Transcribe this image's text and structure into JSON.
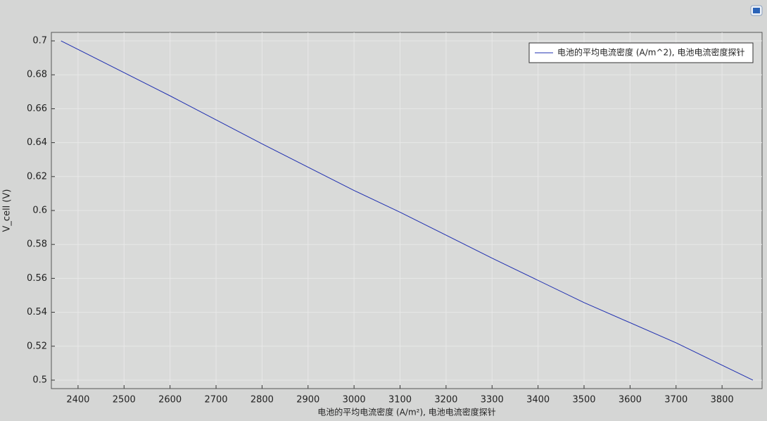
{
  "chart_data": {
    "type": "line",
    "xlabel": "电池的平均电流密度 (A/m²), 电池电流密度探针",
    "ylabel": "V_cell (V)",
    "x": [
      2363,
      2600,
      2800,
      3000,
      3100,
      3300,
      3500,
      3700,
      3867
    ],
    "series": [
      {
        "name": "电池的平均电流密度 (A/m^2), 电池电流密度探针",
        "color": "#1f2fb0",
        "values": [
          0.7,
          0.6676,
          0.6393,
          0.6118,
          0.599,
          0.5719,
          0.5457,
          0.522,
          0.5
        ]
      }
    ],
    "xlim": [
      2342,
      3887
    ],
    "ylim": [
      0.495,
      0.705
    ],
    "xticks": [
      2400,
      2500,
      2600,
      2700,
      2800,
      2900,
      3000,
      3100,
      3200,
      3300,
      3400,
      3500,
      3600,
      3700,
      3800
    ],
    "yticks": [
      0.5,
      0.52,
      0.54,
      0.56,
      0.58,
      0.6,
      0.62,
      0.64,
      0.66,
      0.68,
      0.7
    ],
    "grid": true,
    "legend": "top-right"
  }
}
